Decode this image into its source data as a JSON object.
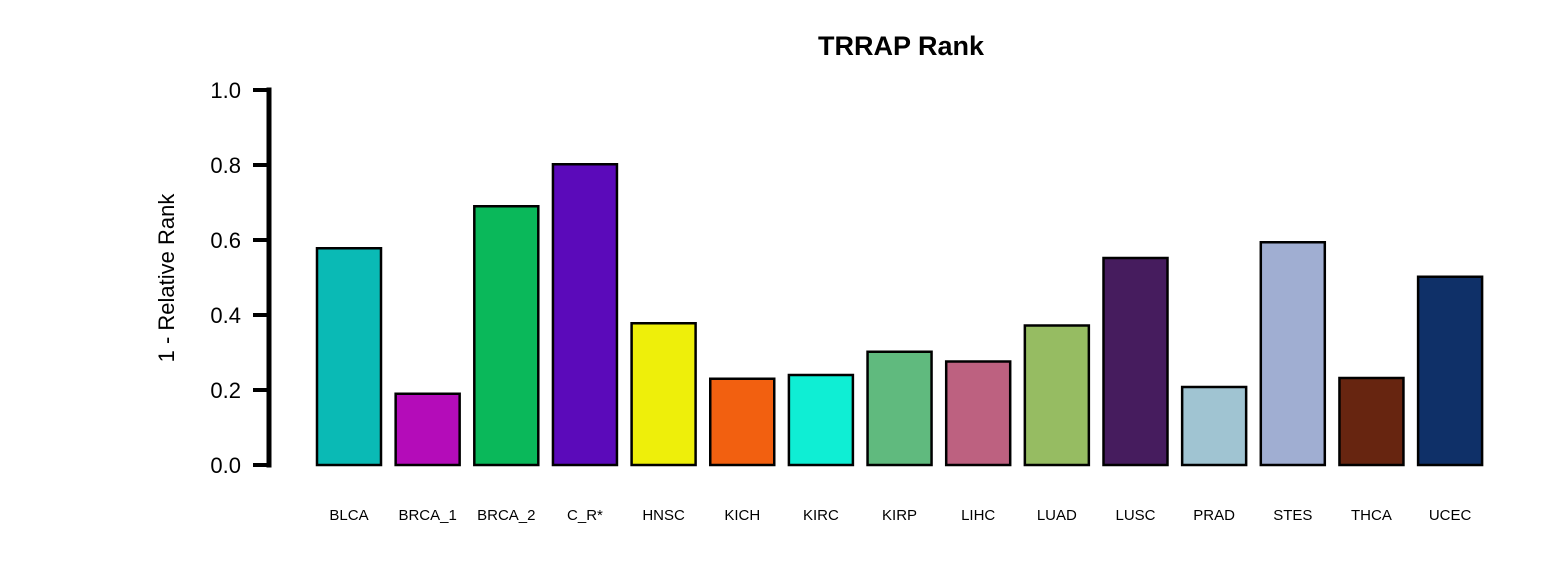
{
  "chart_data": {
    "type": "bar",
    "title": "TRRAP Rank",
    "xlabel": "",
    "ylabel": "1 - Relative Rank",
    "ylim": [
      0,
      1
    ],
    "yticks": [
      "0.0",
      "0.2",
      "0.4",
      "0.6",
      "0.8",
      "1.0"
    ],
    "ytick_values": [
      0,
      0.2,
      0.4,
      0.6,
      0.8,
      1.0
    ],
    "grid": false,
    "legend": "none",
    "categories": [
      "BLCA",
      "BRCA_1",
      "BRCA_2",
      "C_R*",
      "HNSC",
      "KICH",
      "KIRC",
      "KIRP",
      "LIHC",
      "LUAD",
      "LUSC",
      "PRAD",
      "STES",
      "THCA",
      "UCEC"
    ],
    "values": [
      0.578,
      0.19,
      0.69,
      0.802,
      0.378,
      0.23,
      0.24,
      0.302,
      0.276,
      0.372,
      0.552,
      0.208,
      0.594,
      0.232,
      0.502
    ],
    "colors": [
      "#0ABAB5",
      "#B40CB9",
      "#0AB85A",
      "#5B0ABA",
      "#EEEF0A",
      "#F26010",
      "#0FEED4",
      "#60BA7E",
      "#BD6180",
      "#96BC62",
      "#461C5E",
      "#A0C4D2",
      "#A0AED2",
      "#672510",
      "#0F3068"
    ]
  }
}
